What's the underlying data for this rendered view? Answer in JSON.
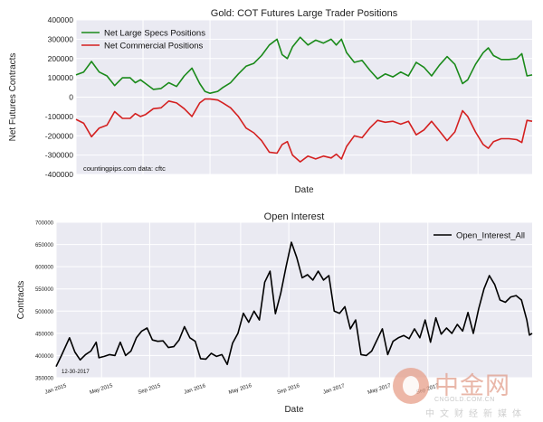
{
  "chart_data": [
    {
      "type": "line",
      "title": "Gold: COT Futures Large Trader Positions",
      "xlabel": "Date",
      "ylabel": "Net Futures Contracts",
      "ylim": [
        -400000,
        400000
      ],
      "yticks": [
        400000,
        300000,
        200000,
        100000,
        0,
        -100000,
        -200000,
        -300000,
        -400000
      ],
      "ytick_labels": [
        "400000",
        "300000",
        "200000",
        "100000",
        "0",
        "-100000",
        "-200000",
        "-300000",
        "-400000"
      ],
      "annotation": "countingpips.com        data: cftc",
      "legend_position": "top-left",
      "x_weeks": 166,
      "series": [
        {
          "name": "Net Large Specs Positions",
          "color": "#1a8a1a",
          "points": [
            [
              0,
              115000
            ],
            [
              3,
              130000
            ],
            [
              6,
              185000
            ],
            [
              9,
              130000
            ],
            [
              12,
              110000
            ],
            [
              15,
              60000
            ],
            [
              18,
              100000
            ],
            [
              21,
              100000
            ],
            [
              23,
              75000
            ],
            [
              25,
              90000
            ],
            [
              27,
              70000
            ],
            [
              30,
              40000
            ],
            [
              33,
              45000
            ],
            [
              36,
              75000
            ],
            [
              39,
              55000
            ],
            [
              42,
              110000
            ],
            [
              45,
              150000
            ],
            [
              48,
              70000
            ],
            [
              50,
              30000
            ],
            [
              52,
              20000
            ],
            [
              55,
              30000
            ],
            [
              57,
              50000
            ],
            [
              60,
              75000
            ],
            [
              63,
              120000
            ],
            [
              66,
              160000
            ],
            [
              69,
              175000
            ],
            [
              72,
              215000
            ],
            [
              75,
              270000
            ],
            [
              78,
              300000
            ],
            [
              80,
              220000
            ],
            [
              82,
              200000
            ],
            [
              84,
              260000
            ],
            [
              87,
              310000
            ],
            [
              90,
              270000
            ],
            [
              93,
              295000
            ],
            [
              96,
              280000
            ],
            [
              99,
              300000
            ],
            [
              101,
              270000
            ],
            [
              103,
              300000
            ],
            [
              105,
              230000
            ],
            [
              108,
              180000
            ],
            [
              111,
              190000
            ],
            [
              114,
              140000
            ],
            [
              117,
              95000
            ],
            [
              120,
              120000
            ],
            [
              123,
              105000
            ],
            [
              126,
              130000
            ],
            [
              129,
              110000
            ],
            [
              132,
              180000
            ],
            [
              135,
              155000
            ],
            [
              138,
              110000
            ],
            [
              141,
              165000
            ],
            [
              144,
              210000
            ],
            [
              147,
              170000
            ],
            [
              150,
              70000
            ],
            [
              152,
              90000
            ],
            [
              155,
              170000
            ],
            [
              158,
              230000
            ],
            [
              160,
              255000
            ],
            [
              162,
              215000
            ],
            [
              165,
              195000
            ],
            [
              168,
              195000
            ],
            [
              171,
              200000
            ],
            [
              173,
              225000
            ],
            [
              175,
              110000
            ],
            [
              177,
              115000
            ]
          ]
        },
        {
          "name": "Net Commercial Positions",
          "color": "#d42020",
          "points": [
            [
              0,
              -115000
            ],
            [
              3,
              -135000
            ],
            [
              6,
              -205000
            ],
            [
              9,
              -160000
            ],
            [
              12,
              -145000
            ],
            [
              15,
              -75000
            ],
            [
              18,
              -110000
            ],
            [
              21,
              -110000
            ],
            [
              23,
              -85000
            ],
            [
              25,
              -100000
            ],
            [
              27,
              -90000
            ],
            [
              30,
              -60000
            ],
            [
              33,
              -55000
            ],
            [
              36,
              -20000
            ],
            [
              39,
              -30000
            ],
            [
              42,
              -60000
            ],
            [
              45,
              -100000
            ],
            [
              48,
              -30000
            ],
            [
              50,
              -10000
            ],
            [
              52,
              -10000
            ],
            [
              55,
              -15000
            ],
            [
              57,
              -30000
            ],
            [
              60,
              -55000
            ],
            [
              63,
              -100000
            ],
            [
              66,
              -160000
            ],
            [
              69,
              -185000
            ],
            [
              72,
              -225000
            ],
            [
              75,
              -285000
            ],
            [
              78,
              -290000
            ],
            [
              80,
              -245000
            ],
            [
              82,
              -230000
            ],
            [
              84,
              -300000
            ],
            [
              87,
              -335000
            ],
            [
              90,
              -305000
            ],
            [
              93,
              -320000
            ],
            [
              96,
              -305000
            ],
            [
              99,
              -315000
            ],
            [
              101,
              -295000
            ],
            [
              103,
              -320000
            ],
            [
              105,
              -255000
            ],
            [
              108,
              -200000
            ],
            [
              111,
              -210000
            ],
            [
              114,
              -160000
            ],
            [
              117,
              -120000
            ],
            [
              120,
              -130000
            ],
            [
              123,
              -125000
            ],
            [
              126,
              -140000
            ],
            [
              129,
              -125000
            ],
            [
              132,
              -195000
            ],
            [
              135,
              -170000
            ],
            [
              138,
              -125000
            ],
            [
              141,
              -175000
            ],
            [
              144,
              -225000
            ],
            [
              147,
              -180000
            ],
            [
              150,
              -70000
            ],
            [
              152,
              -100000
            ],
            [
              155,
              -180000
            ],
            [
              158,
              -245000
            ],
            [
              160,
              -265000
            ],
            [
              162,
              -230000
            ],
            [
              165,
              -215000
            ],
            [
              168,
              -215000
            ],
            [
              171,
              -220000
            ],
            [
              173,
              -235000
            ],
            [
              175,
              -120000
            ],
            [
              177,
              -125000
            ]
          ]
        }
      ]
    },
    {
      "type": "line",
      "title": "Open Interest",
      "xlabel": "Date",
      "ylabel": "Contracts",
      "ylim": [
        350000,
        700000
      ],
      "yticks": [
        700000,
        650000,
        600000,
        550000,
        500000,
        450000,
        400000,
        350000
      ],
      "ytick_labels": [
        "700000",
        "650000",
        "600000",
        "550000",
        "500000",
        "450000",
        "400000",
        "350000"
      ],
      "xticks": [
        0,
        17,
        35,
        52,
        69,
        87,
        104,
        121,
        139
      ],
      "xtick_labels": [
        "Jan 2015",
        "May 2015",
        "Sep 2015",
        "Jan 2016",
        "May 2016",
        "Sep 2016",
        "Jan 2017",
        "May 2017",
        "Sep 2017"
      ],
      "annotation": "12-30-2017",
      "legend_position": "top-right",
      "series": [
        {
          "name": "Open_Interest_All",
          "color": "#000000",
          "points": [
            [
              0,
              375000
            ],
            [
              2,
              400000
            ],
            [
              5,
              440000
            ],
            [
              7,
              408000
            ],
            [
              9,
              390000
            ],
            [
              11,
              402000
            ],
            [
              13,
              410000
            ],
            [
              15,
              430000
            ],
            [
              16,
              395000
            ],
            [
              18,
              398000
            ],
            [
              20,
              402000
            ],
            [
              22,
              400000
            ],
            [
              24,
              430000
            ],
            [
              26,
              400000
            ],
            [
              28,
              410000
            ],
            [
              30,
              440000
            ],
            [
              32,
              455000
            ],
            [
              34,
              462000
            ],
            [
              36,
              435000
            ],
            [
              38,
              432000
            ],
            [
              40,
              433000
            ],
            [
              42,
              418000
            ],
            [
              44,
              420000
            ],
            [
              46,
              435000
            ],
            [
              48,
              465000
            ],
            [
              50,
              440000
            ],
            [
              52,
              432000
            ],
            [
              54,
              393000
            ],
            [
              56,
              392000
            ],
            [
              58,
              405000
            ],
            [
              60,
              398000
            ],
            [
              62,
              402000
            ],
            [
              64,
              380000
            ],
            [
              66,
              428000
            ],
            [
              68,
              450000
            ],
            [
              70,
              495000
            ],
            [
              72,
              475000
            ],
            [
              74,
              500000
            ],
            [
              76,
              480000
            ],
            [
              78,
              565000
            ],
            [
              80,
              590000
            ],
            [
              82,
              494000
            ],
            [
              84,
              540000
            ],
            [
              86,
              600000
            ],
            [
              88,
              655000
            ],
            [
              90,
              620000
            ],
            [
              92,
              575000
            ],
            [
              94,
              582000
            ],
            [
              96,
              570000
            ],
            [
              98,
              590000
            ],
            [
              100,
              570000
            ],
            [
              102,
              580000
            ],
            [
              104,
              500000
            ],
            [
              106,
              495000
            ],
            [
              108,
              510000
            ],
            [
              110,
              460000
            ],
            [
              112,
              480000
            ],
            [
              114,
              402000
            ],
            [
              116,
              400000
            ],
            [
              118,
              410000
            ],
            [
              120,
              435000
            ],
            [
              122,
              460000
            ],
            [
              124,
              402000
            ],
            [
              126,
              432000
            ],
            [
              128,
              440000
            ],
            [
              130,
              445000
            ],
            [
              132,
              438000
            ],
            [
              134,
              460000
            ],
            [
              136,
              440000
            ],
            [
              138,
              480000
            ],
            [
              140,
              430000
            ],
            [
              142,
              485000
            ],
            [
              144,
              448000
            ],
            [
              146,
              462000
            ],
            [
              148,
              450000
            ],
            [
              150,
              470000
            ],
            [
              152,
              455000
            ],
            [
              154,
              497000
            ],
            [
              156,
              450000
            ],
            [
              158,
              505000
            ],
            [
              160,
              550000
            ],
            [
              162,
              580000
            ],
            [
              164,
              560000
            ],
            [
              166,
              525000
            ],
            [
              168,
              520000
            ],
            [
              170,
              532000
            ],
            [
              172,
              535000
            ],
            [
              174,
              525000
            ],
            [
              176,
              480000
            ],
            [
              177,
              446000
            ],
            [
              178,
              450000
            ]
          ]
        }
      ]
    }
  ],
  "watermark": {
    "cn_title": "中金网",
    "url": "CNGOLD.COM.CN",
    "cn_sub": "中文财经新媒体"
  }
}
